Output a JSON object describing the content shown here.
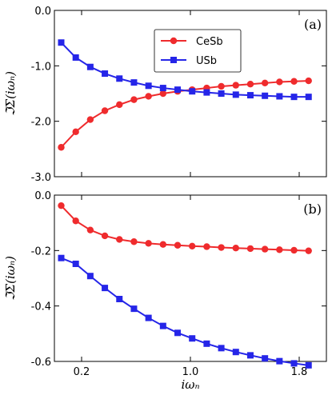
{
  "chart_data": [
    {
      "type": "line",
      "panel_label": "(a)",
      "ylabel": "ℑΣ(iωₙ)",
      "xlabel": "",
      "xlim": [
        0.0,
        2.0
      ],
      "ylim": [
        -3.0,
        0.0
      ],
      "yticks": [
        0.0,
        -1.0,
        -2.0,
        -3.0
      ],
      "ytick_labels": [
        "0.0",
        "-1.0",
        "-2.0",
        "-3.0"
      ],
      "xticks": [
        0.2,
        1.0,
        1.8
      ],
      "xtick_labels": [],
      "legend": {
        "placement": "upper-center",
        "entries": [
          "CeSb",
          "USb"
        ]
      },
      "x": [
        0.05,
        0.157,
        0.264,
        0.371,
        0.478,
        0.585,
        0.692,
        0.799,
        0.906,
        1.013,
        1.12,
        1.227,
        1.334,
        1.441,
        1.548,
        1.655,
        1.762,
        1.869
      ],
      "series": [
        {
          "name": "CeSb",
          "color": "#ef2b2d",
          "marker": "circle",
          "values": [
            -2.47,
            -2.19,
            -1.97,
            -1.81,
            -1.7,
            -1.61,
            -1.55,
            -1.5,
            -1.46,
            -1.43,
            -1.4,
            -1.37,
            -1.35,
            -1.33,
            -1.31,
            -1.29,
            -1.28,
            -1.27
          ]
        },
        {
          "name": "USb",
          "color": "#2525e8",
          "marker": "square",
          "values": [
            -0.58,
            -0.85,
            -1.02,
            -1.14,
            -1.23,
            -1.3,
            -1.36,
            -1.4,
            -1.43,
            -1.46,
            -1.48,
            -1.5,
            -1.52,
            -1.53,
            -1.54,
            -1.55,
            -1.56,
            -1.56
          ]
        }
      ]
    },
    {
      "type": "line",
      "panel_label": "(b)",
      "ylabel": "ℑΣ(iωₙ)",
      "xlabel": "iωₙ",
      "xlim": [
        0.0,
        2.0
      ],
      "ylim": [
        -0.6,
        0.0
      ],
      "yticks": [
        0.0,
        -0.2,
        -0.4,
        -0.6
      ],
      "ytick_labels": [
        "0.0",
        "-0.2",
        "-0.4",
        "-0.6"
      ],
      "xticks": [
        0.2,
        1.0,
        1.8
      ],
      "xtick_labels": [
        "0.2",
        "1.0",
        "1.8"
      ],
      "x": [
        0.05,
        0.157,
        0.264,
        0.371,
        0.478,
        0.585,
        0.692,
        0.799,
        0.906,
        1.013,
        1.12,
        1.227,
        1.334,
        1.441,
        1.548,
        1.655,
        1.762,
        1.869
      ],
      "series": [
        {
          "name": "CeSb",
          "color": "#ef2b2d",
          "marker": "circle",
          "values": [
            -0.038,
            -0.093,
            -0.126,
            -0.147,
            -0.16,
            -0.168,
            -0.174,
            -0.178,
            -0.181,
            -0.184,
            -0.186,
            -0.189,
            -0.191,
            -0.193,
            -0.195,
            -0.197,
            -0.199,
            -0.201
          ]
        },
        {
          "name": "USb",
          "color": "#2525e8",
          "marker": "square",
          "values": [
            -0.227,
            -0.248,
            -0.292,
            -0.335,
            -0.375,
            -0.41,
            -0.443,
            -0.472,
            -0.497,
            -0.517,
            -0.536,
            -0.552,
            -0.566,
            -0.578,
            -0.589,
            -0.599,
            -0.607,
            -0.614
          ]
        }
      ]
    }
  ]
}
